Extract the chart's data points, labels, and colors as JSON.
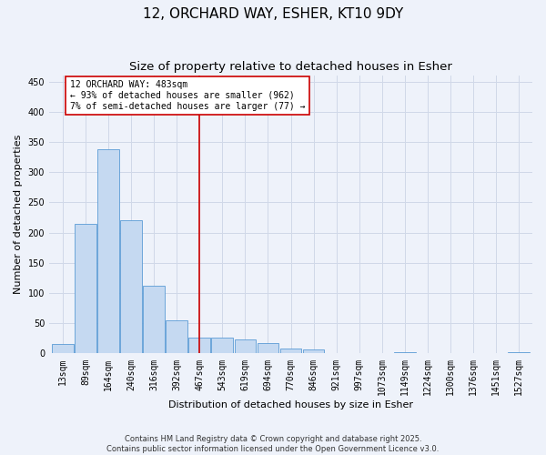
{
  "title": "12, ORCHARD WAY, ESHER, KT10 9DY",
  "subtitle": "Size of property relative to detached houses in Esher",
  "xlabel": "Distribution of detached houses by size in Esher",
  "ylabel": "Number of detached properties",
  "categories": [
    "13sqm",
    "89sqm",
    "164sqm",
    "240sqm",
    "316sqm",
    "392sqm",
    "467sqm",
    "543sqm",
    "619sqm",
    "694sqm",
    "770sqm",
    "846sqm",
    "921sqm",
    "997sqm",
    "1073sqm",
    "1149sqm",
    "1224sqm",
    "1300sqm",
    "1376sqm",
    "1451sqm",
    "1527sqm"
  ],
  "values": [
    15,
    215,
    338,
    220,
    112,
    55,
    26,
    26,
    24,
    18,
    8,
    6,
    0,
    0,
    0,
    2,
    0,
    0,
    0,
    0,
    2
  ],
  "bar_color": "#c5d9f1",
  "bar_edge_color": "#5b9bd5",
  "grid_color": "#d0d8e8",
  "background_color": "#eef2fa",
  "annotation_text": "12 ORCHARD WAY: 483sqm\n← 93% of detached houses are smaller (962)\n7% of semi-detached houses are larger (77) →",
  "annotation_box_color": "#ffffff",
  "annotation_box_edge": "#cc0000",
  "vline_x_index": 6.0,
  "vline_color": "#cc0000",
  "footnote": "Contains HM Land Registry data © Crown copyright and database right 2025.\nContains public sector information licensed under the Open Government Licence v3.0.",
  "ylim": [
    0,
    460
  ],
  "title_fontsize": 11,
  "subtitle_fontsize": 9.5,
  "axis_fontsize": 8,
  "tick_fontsize": 7,
  "footnote_fontsize": 6
}
